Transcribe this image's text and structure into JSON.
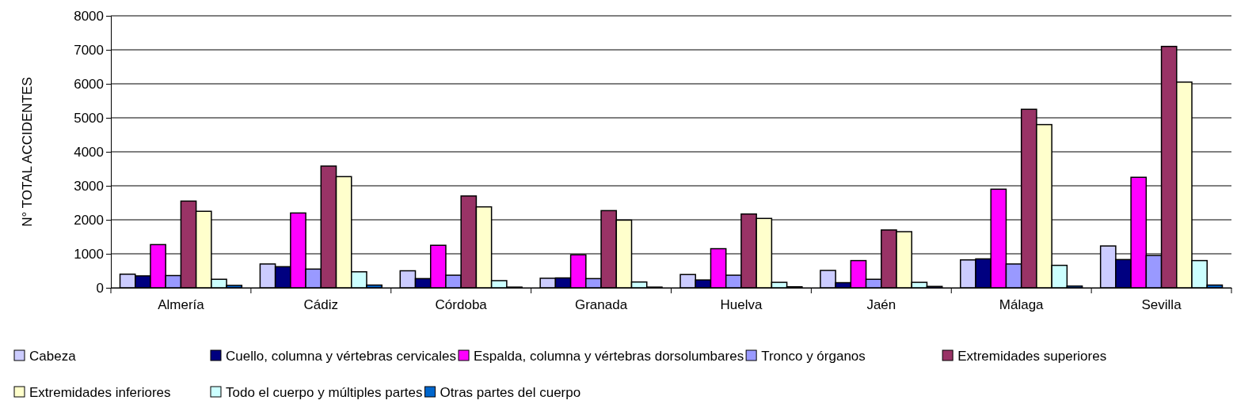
{
  "chart_data": {
    "type": "bar",
    "ylabel": "N° TOTAL ACCIDENTES",
    "categories": [
      "Almería",
      "Cádiz",
      "Córdoba",
      "Granada",
      "Huelva",
      "Jaén",
      "Málaga",
      "Sevilla"
    ],
    "series": [
      {
        "name": "Cabeza",
        "color": "#ccccff",
        "values": [
          400,
          700,
          500,
          280,
          390,
          510,
          820,
          1230
        ]
      },
      {
        "name": "Cuello, columna y vértebras cervicales",
        "color": "#000080",
        "values": [
          350,
          620,
          270,
          290,
          230,
          150,
          850,
          830
        ]
      },
      {
        "name": "Espalda, columna y vértebras dorsolumbares",
        "color": "#ff00ff",
        "values": [
          1270,
          2200,
          1250,
          970,
          1150,
          800,
          2900,
          3250
        ]
      },
      {
        "name": "Tronco y órganos",
        "color": "#9999ff",
        "values": [
          360,
          550,
          370,
          270,
          370,
          250,
          700,
          950
        ]
      },
      {
        "name": "Extremidades superiores",
        "color": "#993366",
        "values": [
          2550,
          3580,
          2700,
          2270,
          2170,
          1700,
          5250,
          7100
        ]
      },
      {
        "name": "Extremidades inferiores",
        "color": "#ffffcc",
        "values": [
          2250,
          3270,
          2380,
          1990,
          2040,
          1650,
          4800,
          6050
        ]
      },
      {
        "name": "Todo el cuerpo y múltiples partes",
        "color": "#ccffff",
        "values": [
          250,
          470,
          210,
          170,
          160,
          160,
          660,
          800
        ]
      },
      {
        "name": "Otras partes del cuerpo",
        "color": "#0066cc",
        "values": [
          70,
          80,
          20,
          20,
          30,
          40,
          50,
          80
        ]
      }
    ],
    "ylim": [
      0,
      8000
    ],
    "yticks": [
      0,
      1000,
      2000,
      3000,
      4000,
      5000,
      6000,
      7000,
      8000
    ],
    "grid": "y",
    "legend": "bottom"
  }
}
